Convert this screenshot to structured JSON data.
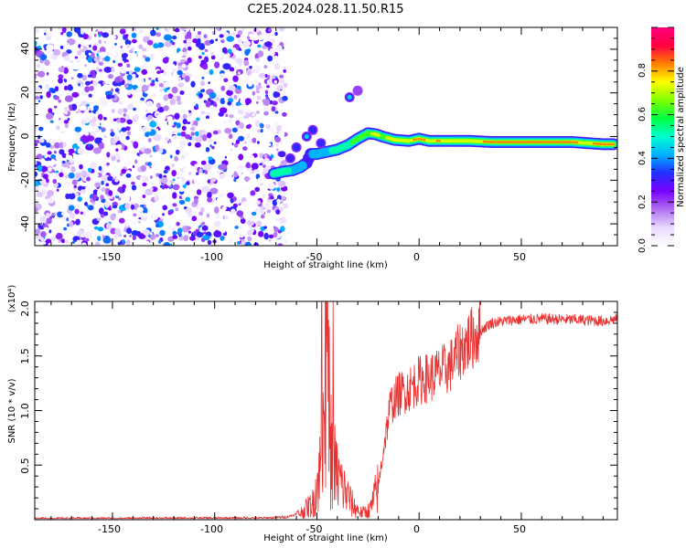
{
  "page_title": "C2E5.2024.028.11.50.R15",
  "colors": {
    "accent_red": "#e83030",
    "colormap": [
      "#ffffff",
      "#e8d8ff",
      "#b070f0",
      "#7a00ff",
      "#2030ff",
      "#00b0ff",
      "#00ffd0",
      "#00ff40",
      "#80ff00",
      "#ffff00",
      "#ff8000",
      "#ff0040",
      "#ff0080"
    ]
  },
  "chart_data": [
    {
      "type": "heatmap",
      "title": "C2E5.2024.028.11.50.R15",
      "xlabel": "Height of straight line (km)",
      "ylabel": "Frequency (Hz)",
      "xlim": [
        -188,
        97
      ],
      "ylim": [
        -50,
        50
      ],
      "xticks": [
        "-150",
        "-100",
        "-50",
        "0",
        "50"
      ],
      "yticks": [
        "-40",
        "-20",
        "0",
        "20",
        "40"
      ],
      "grid": false,
      "colorbar": {
        "label": "Normalized spectral amplitude",
        "range": [
          0,
          1
        ],
        "ticks": [
          "0.0",
          "0.2",
          "0.4",
          "0.6",
          "0.8"
        ]
      },
      "noise_region_x": [
        -188,
        -68
      ],
      "ridge": [
        {
          "x": -71,
          "y": -17,
          "amp": 0.55
        },
        {
          "x": -66,
          "y": -16,
          "amp": 0.55
        },
        {
          "x": -62,
          "y": -15.5,
          "amp": 0.5
        },
        {
          "x": -58,
          "y": -14,
          "amp": 0.5
        },
        {
          "x": -55,
          "y": -12,
          "amp": 0.35
        },
        {
          "x": -53,
          "y": -8,
          "amp": 0.4
        },
        {
          "x": -50,
          "y": -8,
          "amp": 0.5
        },
        {
          "x": -45,
          "y": -7,
          "amp": 0.5
        },
        {
          "x": -40,
          "y": -6,
          "amp": 0.55
        },
        {
          "x": -35,
          "y": -4,
          "amp": 0.6
        },
        {
          "x": -30,
          "y": -1,
          "amp": 0.65
        },
        {
          "x": -25,
          "y": 1.5,
          "amp": 0.7
        },
        {
          "x": -21,
          "y": 1,
          "amp": 0.75
        },
        {
          "x": -18,
          "y": 0,
          "amp": 0.7
        },
        {
          "x": -12,
          "y": -1.5,
          "amp": 0.78
        },
        {
          "x": -5,
          "y": -2,
          "amp": 0.82
        },
        {
          "x": 0,
          "y": -1,
          "amp": 0.88
        },
        {
          "x": 5,
          "y": -2,
          "amp": 0.82
        },
        {
          "x": 10,
          "y": -2,
          "amp": 0.85
        },
        {
          "x": 15,
          "y": -2,
          "amp": 0.8
        },
        {
          "x": 25,
          "y": -2,
          "amp": 0.82
        },
        {
          "x": 35,
          "y": -2.5,
          "amp": 0.85
        },
        {
          "x": 45,
          "y": -2.5,
          "amp": 0.87
        },
        {
          "x": 55,
          "y": -2.5,
          "amp": 0.88
        },
        {
          "x": 65,
          "y": -2.5,
          "amp": 0.87
        },
        {
          "x": 75,
          "y": -2.5,
          "amp": 0.86
        },
        {
          "x": 82,
          "y": -3,
          "amp": 0.8
        },
        {
          "x": 90,
          "y": -3.5,
          "amp": 0.92
        },
        {
          "x": 95,
          "y": -3.5,
          "amp": 0.85
        }
      ],
      "blobs": [
        {
          "x": -34,
          "y": 18,
          "amp": 0.45
        },
        {
          "x": -30,
          "y": 21,
          "amp": 0.15
        },
        {
          "x": -52,
          "y": 3,
          "amp": 0.3
        },
        {
          "x": -55,
          "y": 0,
          "amp": 0.45
        },
        {
          "x": -48,
          "y": -3,
          "amp": 0.3
        },
        {
          "x": -60,
          "y": -5,
          "amp": 0.28
        },
        {
          "x": -63,
          "y": -10,
          "amp": 0.25
        }
      ]
    },
    {
      "type": "line",
      "xlabel": "Height of straight line (km)",
      "ylabel": "SNR (10 * v/v)",
      "y_multiplier": "(x10⁴)",
      "xlim": [
        -188,
        97
      ],
      "ylim": [
        0,
        20000
      ],
      "xticks": [
        "-150",
        "-100",
        "-50",
        "0",
        "50"
      ],
      "yticks": [
        "0.5",
        "1.0",
        "1.5",
        "2.0"
      ],
      "grid": false,
      "color": "#e83030",
      "envelope": [
        {
          "x": -188,
          "y": 100
        },
        {
          "x": -75,
          "y": 150
        },
        {
          "x": -65,
          "y": 250
        },
        {
          "x": -58,
          "y": 600
        },
        {
          "x": -52,
          "y": 1500
        },
        {
          "x": -48,
          "y": 5000
        },
        {
          "x": -45,
          "y": 14000
        },
        {
          "x": -43,
          "y": 6000
        },
        {
          "x": -40,
          "y": 4000
        },
        {
          "x": -36,
          "y": 2500
        },
        {
          "x": -32,
          "y": 1200
        },
        {
          "x": -28,
          "y": 600
        },
        {
          "x": -24,
          "y": 900
        },
        {
          "x": -20,
          "y": 3000
        },
        {
          "x": -17,
          "y": 7000
        },
        {
          "x": -14,
          "y": 10500
        },
        {
          "x": -10,
          "y": 11500
        },
        {
          "x": -5,
          "y": 12000
        },
        {
          "x": 0,
          "y": 12800
        },
        {
          "x": 5,
          "y": 13000
        },
        {
          "x": 10,
          "y": 13500
        },
        {
          "x": 15,
          "y": 14000
        },
        {
          "x": 20,
          "y": 15500
        },
        {
          "x": 25,
          "y": 16500
        },
        {
          "x": 30,
          "y": 17300
        },
        {
          "x": 35,
          "y": 18000
        },
        {
          "x": 45,
          "y": 18300
        },
        {
          "x": 60,
          "y": 18400
        },
        {
          "x": 80,
          "y": 18300
        },
        {
          "x": 90,
          "y": 18200
        },
        {
          "x": 97,
          "y": 18400
        }
      ]
    }
  ]
}
